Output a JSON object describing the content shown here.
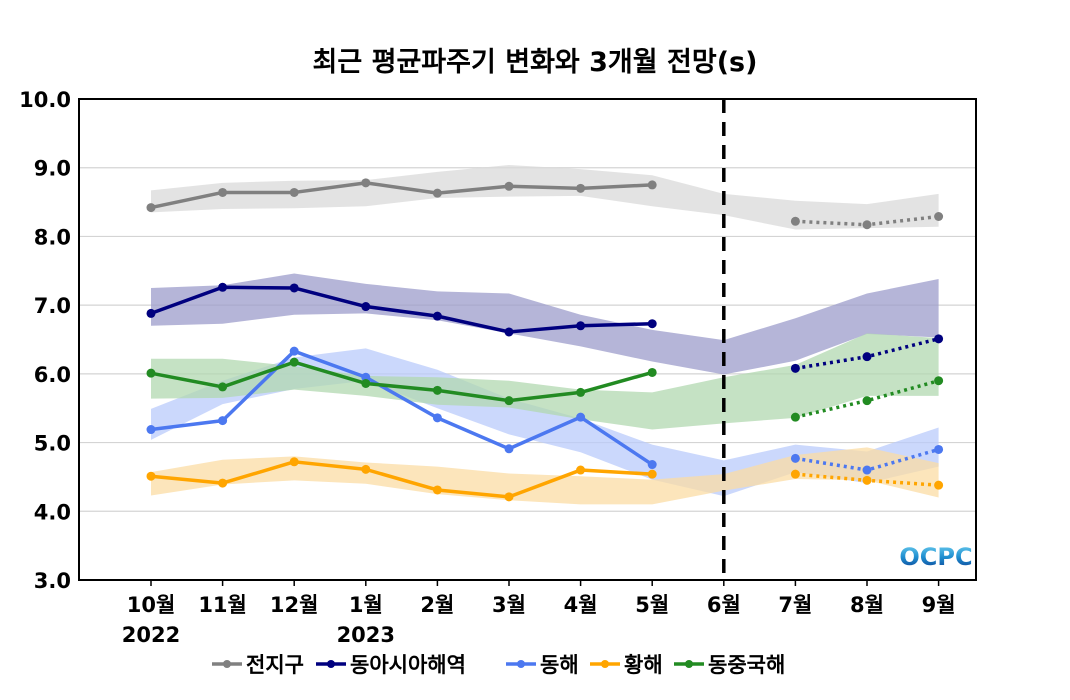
{
  "chart_data": {
    "type": "line",
    "title": "최근 평균파주기 변화와 3개월 전망(s)",
    "xlabel": "",
    "ylabel": "",
    "ylim": [
      3.0,
      10.0
    ],
    "yticks": [
      "3.0",
      "4.0",
      "5.0",
      "6.0",
      "7.0",
      "8.0",
      "9.0",
      "10.0"
    ],
    "ytick_values": [
      3,
      4,
      5,
      6,
      7,
      8,
      9,
      10
    ],
    "grid": true,
    "legend_position": "bottom",
    "categories": [
      "10월",
      "11월",
      "12월",
      "1월",
      "2월",
      "3월",
      "4월",
      "5월",
      "6월",
      "7월",
      "8월",
      "9월"
    ],
    "year_labels": [
      {
        "index": 0,
        "label": "2022"
      },
      {
        "index": 3,
        "label": "2023"
      }
    ],
    "divider_index": 8,
    "series": [
      {
        "name": "전지구",
        "color": "#808080",
        "band_color": "#d9d9d9",
        "observed": [
          8.42,
          8.64,
          8.64,
          8.78,
          8.63,
          8.73,
          8.7,
          8.75,
          null,
          null,
          null,
          null
        ],
        "forecast": [
          null,
          null,
          null,
          null,
          null,
          null,
          null,
          null,
          null,
          8.22,
          8.17,
          8.29
        ],
        "band_upper": [
          8.67,
          8.78,
          8.81,
          8.82,
          8.94,
          9.04,
          8.98,
          8.89,
          8.62,
          8.52,
          8.47,
          8.62
        ],
        "band_lower": [
          8.35,
          8.4,
          8.41,
          8.44,
          8.56,
          8.58,
          8.59,
          8.44,
          8.31,
          8.1,
          8.12,
          8.14
        ]
      },
      {
        "name": "동아시아해역",
        "color": "#00007f",
        "band_color": "#9c9ccb",
        "observed": [
          6.88,
          7.26,
          7.25,
          6.98,
          6.84,
          6.61,
          6.7,
          6.73,
          null,
          null,
          null,
          null
        ],
        "forecast": [
          null,
          null,
          null,
          null,
          null,
          null,
          null,
          null,
          null,
          6.08,
          6.25,
          6.51
        ],
        "band_upper": [
          7.25,
          7.29,
          7.46,
          7.31,
          7.2,
          7.17,
          6.86,
          6.64,
          6.49,
          6.81,
          7.17,
          7.38
        ],
        "band_lower": [
          6.7,
          6.73,
          6.86,
          6.88,
          6.78,
          6.59,
          6.4,
          6.18,
          5.99,
          6.19,
          6.58,
          6.53
        ]
      },
      {
        "name": "동해",
        "color": "#4c78f0",
        "band_color": "#b9cbfb",
        "observed": [
          5.19,
          5.32,
          6.33,
          5.95,
          5.36,
          4.91,
          5.37,
          4.68,
          null,
          null,
          null,
          null
        ],
        "forecast": [
          null,
          null,
          null,
          null,
          null,
          null,
          null,
          null,
          null,
          4.77,
          4.6,
          4.9
        ],
        "band_upper": [
          5.49,
          5.9,
          6.24,
          6.37,
          6.06,
          5.64,
          5.35,
          4.97,
          4.74,
          4.97,
          4.87,
          5.22
        ],
        "band_lower": [
          5.04,
          5.56,
          5.78,
          5.9,
          5.5,
          5.12,
          4.86,
          4.46,
          4.22,
          4.57,
          4.41,
          4.65
        ]
      },
      {
        "name": "황해",
        "color": "#ffa500",
        "band_color": "#fbdca4",
        "observed": [
          4.51,
          4.41,
          4.72,
          4.61,
          4.31,
          4.21,
          4.6,
          4.54,
          null,
          null,
          null,
          null
        ],
        "forecast": [
          null,
          null,
          null,
          null,
          null,
          null,
          null,
          null,
          null,
          4.54,
          4.45,
          4.38
        ],
        "band_upper": [
          4.57,
          4.75,
          4.8,
          4.71,
          4.65,
          4.55,
          4.51,
          4.46,
          4.54,
          4.82,
          4.93,
          4.7
        ],
        "band_lower": [
          4.23,
          4.39,
          4.45,
          4.4,
          4.25,
          4.16,
          4.1,
          4.1,
          4.3,
          4.47,
          4.45,
          4.2
        ]
      },
      {
        "name": "동중국해",
        "color": "#228b22",
        "band_color": "#b2d8b0",
        "observed": [
          6.01,
          5.81,
          6.17,
          5.86,
          5.76,
          5.61,
          5.73,
          6.02,
          null,
          null,
          null,
          null
        ],
        "forecast": [
          null,
          null,
          null,
          null,
          null,
          null,
          null,
          null,
          null,
          5.37,
          5.61,
          5.9
        ],
        "band_upper": [
          6.22,
          6.22,
          6.11,
          5.97,
          5.95,
          5.9,
          5.77,
          5.73,
          5.95,
          6.13,
          6.59,
          6.52
        ],
        "band_lower": [
          5.64,
          5.65,
          5.77,
          5.68,
          5.55,
          5.51,
          5.34,
          5.19,
          5.28,
          5.36,
          5.68,
          5.68
        ]
      }
    ]
  },
  "logo_text": "OCPC"
}
